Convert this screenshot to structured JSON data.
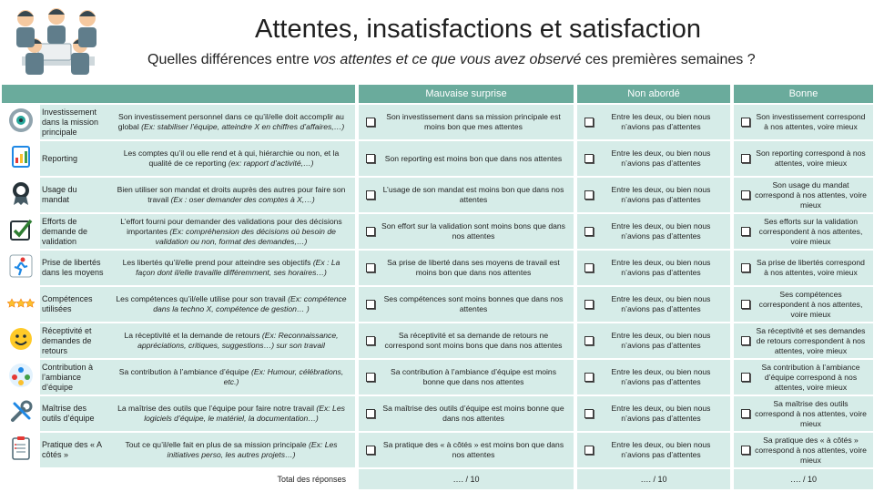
{
  "title": "Attentes, insatisfactions et satisfaction",
  "subtitle": {
    "before": "Quelles différences entre ",
    "italic": "vos attentes et ce que vous avez observé",
    "after": " ces premières semaines ?"
  },
  "columns": [
    "Mauvaise surprise",
    "Non abordé",
    "Bonne"
  ],
  "rows": [
    {
      "icon": "target-icon",
      "label": "Investissement dans la mission principale",
      "desc": "Son investissement personnel dans ce qu’il/elle doit accomplir au global",
      "desc_example": "(Ex: stabiliser l’équipe, atteindre X en chiffres d’affaires,…)",
      "bad": "Son investissement dans sa mission principale est moins bon que mes attentes",
      "none": "Entre les deux, ou bien nous n’avions pas d’attentes",
      "good": "Son investissement correspond à nos attentes, voire mieux"
    },
    {
      "icon": "report-icon",
      "label": "Reporting",
      "desc": "Les comptes qu’il ou elle rend et à qui, hiérarchie ou non, et la qualité de ce reporting",
      "desc_example": "(ex: rapport d’activité,…)",
      "bad": "Son reporting est moins bon que dans nos attentes",
      "none": "Entre les deux, ou bien nous n’avions pas d’attentes",
      "good": "Son reporting correspond à nos attentes, voire mieux"
    },
    {
      "icon": "badge-icon",
      "label": "Usage du mandat",
      "desc": "Bien utiliser son mandat et droits auprès des autres pour faire son travail",
      "desc_example": "(Ex : oser demander des comptes à X,…)",
      "bad": "L’usage de son mandat est moins bon que dans nos attentes",
      "none": "Entre les deux, ou bien nous n’avions pas d’attentes",
      "good": "Son usage du mandat correspond à nos attentes, voire mieux"
    },
    {
      "icon": "checkbox-icon",
      "label": "Efforts de demande de validation",
      "desc": "L’effort fourni pour demander des validations pour des décisions importantes",
      "desc_example": "(Ex: compréhension des décisions où besoin de validation ou non, format des demandes,…)",
      "bad": "Son effort sur la validation sont moins bons que dans nos attentes",
      "none": "Entre les deux, ou bien nous n’avions pas d’attentes",
      "good": "Ses efforts sur la validation correspondent à nos attentes, voire mieux"
    },
    {
      "icon": "running-person-icon",
      "label": "Prise de libertés dans les moyens",
      "desc": "Les libertés qu’il/elle prend pour atteindre ses objectifs",
      "desc_example": "(Ex : La façon dont il/elle travaille différemment, ses horaires…)",
      "bad": "Sa prise de liberté dans ses moyens de travail est moins bon que dans nos attentes",
      "none": "Entre les deux, ou bien nous n’avions pas d’attentes",
      "good": "Sa prise de libertés correspond à nos attentes, voire mieux"
    },
    {
      "icon": "stars-icon",
      "label": "Compétences utilisées",
      "desc": "Les compétences qu’il/elle utilise pour son travail",
      "desc_example": "(Ex: compétence dans la techno X, compétence de gestion… )",
      "bad": "Ses compétences sont moins bonnes que dans nos attentes",
      "none": "Entre les deux, ou bien nous n’avions pas d’attentes",
      "good": "Ses compétences correspondent à nos attentes, voire mieux"
    },
    {
      "icon": "feedback-icon",
      "label": "Réceptivité et demandes de retours",
      "desc": "La réceptivité et la demande de retours",
      "desc_example": "(Ex: Reconnaissance, appréciations, critiques, suggestions…) sur son travail",
      "bad": "Sa réceptivité et sa demande de retours ne correspond sont moins bons que dans nos attentes",
      "none": "Entre les deux, ou bien nous n’avions pas d’attentes",
      "good": "Sa réceptivité et ses demandes de retours correspondent à nos attentes, voire mieux"
    },
    {
      "icon": "team-icon",
      "label": "Contribution à l’ambiance d’équipe",
      "desc": "Sa contribution à l’ambiance d’équipe",
      "desc_example": "(Ex: Humour, célébrations, etc.)",
      "bad": "Sa contribution à l’ambiance d’équipe est moins bonne que dans nos attentes",
      "none": "Entre les deux, ou bien nous n’avions pas d’attentes",
      "good": "Sa contribution à l’ambiance d’équipe correspond à nos attentes, voire mieux"
    },
    {
      "icon": "tools-icon",
      "label": "Maîtrise des outils d’équipe",
      "desc": "La maîtrise des outils que l’équipe pour faire notre travail",
      "desc_example": "(Ex: Les logiciels d’équipe, le matériel, la documentation…)",
      "bad": "Sa maîtrise des outils d’équipe est moins bonne que dans nos attentes",
      "none": "Entre les deux, ou bien nous n’avions pas d’attentes",
      "good": "Sa maîtrise des outils correspond à nos attentes, voire mieux"
    },
    {
      "icon": "clipboard-icon",
      "label": "Pratique des « A côtés »",
      "desc": "Tout ce qu’il/elle fait en plus de sa mission principale",
      "desc_example": "(Ex: Les initiatives perso, les autres projets…)",
      "bad": "Sa pratique des « à côtés » est moins bon que dans nos attentes",
      "none": "Entre les deux, ou bien nous n’avions pas d’attentes",
      "good": "Sa pratique des « à côtés » correspond à nos attentes, voire mieux"
    }
  ],
  "total": {
    "label": "Total des réponses",
    "bad": "…. / 10",
    "none": "…. / 10",
    "good": "…. / 10"
  },
  "colors": {
    "header": "#6aab9c",
    "cell": "#d6ece8"
  }
}
